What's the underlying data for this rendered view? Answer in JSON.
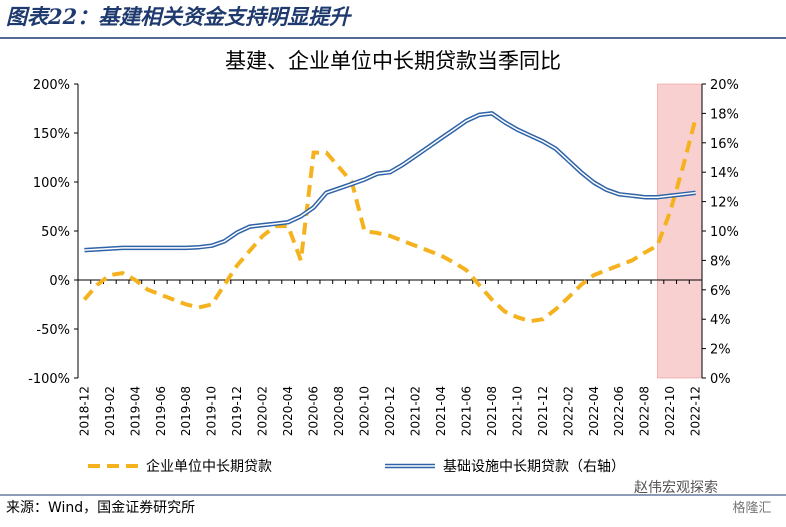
{
  "header": {
    "title": "图表22：基建相关资金支持明显提升"
  },
  "chart_data": {
    "type": "line",
    "title": "基建、企业单位中长期贷款当季同比",
    "categories": [
      "2018-12",
      null,
      "2019-02",
      null,
      "2019-04",
      null,
      "2019-06",
      null,
      "2019-08",
      null,
      "2019-10",
      null,
      "2019-12",
      null,
      "2020-02",
      null,
      "2020-04",
      null,
      "2020-06",
      null,
      "2020-08",
      null,
      "2020-10",
      null,
      "2020-12",
      null,
      "2021-02",
      null,
      "2021-04",
      null,
      "2021-06",
      null,
      "2021-08",
      null,
      "2021-10",
      null,
      "2021-12",
      null,
      "2022-02",
      null,
      "2022-04",
      null,
      "2022-06",
      null,
      "2022-08",
      null,
      "2022-10",
      null,
      "2022-12"
    ],
    "highlight": [
      "2022-10",
      "2022-12"
    ],
    "highlight_color": "#f9d0d0",
    "series": [
      {
        "name": "企业单位中长期贷款",
        "color": "#f5b21e",
        "style": "dashed",
        "values": [
          -20,
          -5,
          5,
          7,
          0,
          -10,
          -15,
          -20,
          -25,
          -28,
          -25,
          -5,
          15,
          30,
          45,
          55,
          55,
          20,
          130,
          130,
          115,
          100,
          50,
          48,
          45,
          40,
          35,
          30,
          25,
          18,
          10,
          -5,
          -20,
          -32,
          -38,
          -42,
          -40,
          -30,
          -18,
          -5,
          5,
          10,
          15,
          20,
          28,
          35,
          70,
          115,
          165
        ]
      },
      {
        "name": "基础设施中长期贷款（右轴）",
        "color": "#2e63a8",
        "style": "double",
        "axis": "y2",
        "values": [
          8.7,
          8.75,
          8.8,
          8.85,
          8.85,
          8.85,
          8.85,
          8.85,
          8.85,
          8.9,
          9.0,
          9.3,
          9.9,
          10.3,
          10.4,
          10.5,
          10.6,
          11.0,
          11.6,
          12.6,
          12.9,
          13.2,
          13.5,
          13.9,
          14.0,
          14.5,
          15.1,
          15.7,
          16.3,
          16.9,
          17.5,
          17.9,
          18.0,
          17.4,
          16.9,
          16.5,
          16.1,
          15.6,
          14.8,
          14.0,
          13.3,
          12.8,
          12.5,
          12.4,
          12.3,
          12.3,
          12.4,
          12.5,
          12.6
        ]
      }
    ],
    "ylim": [
      -100,
      200
    ],
    "yticks": [
      {
        "value": -100,
        "label": "-100%"
      },
      {
        "value": -50,
        "label": "-50%"
      },
      {
        "value": 0,
        "label": "0%"
      },
      {
        "value": 50,
        "label": "50%"
      },
      {
        "value": 100,
        "label": "100%"
      },
      {
        "value": 150,
        "label": "150%"
      },
      {
        "value": 200,
        "label": "200%"
      }
    ],
    "y2lim": [
      0,
      20
    ],
    "y2ticks": [
      {
        "value": 0,
        "label": "0%"
      },
      {
        "value": 2,
        "label": "2%"
      },
      {
        "value": 4,
        "label": "4%"
      },
      {
        "value": 6,
        "label": "6%"
      },
      {
        "value": 8,
        "label": "8%"
      },
      {
        "value": 10,
        "label": "10%"
      },
      {
        "value": 12,
        "label": "12%"
      },
      {
        "value": 14,
        "label": "14%"
      },
      {
        "value": 16,
        "label": "16%"
      },
      {
        "value": 18,
        "label": "18%"
      },
      {
        "value": 20,
        "label": "20%"
      }
    ],
    "legend": "bottom"
  },
  "footer": {
    "source": "来源：Wind，国金证券研究所",
    "watermark": "赵伟宏观探索",
    "watermark2": "格隆汇"
  }
}
